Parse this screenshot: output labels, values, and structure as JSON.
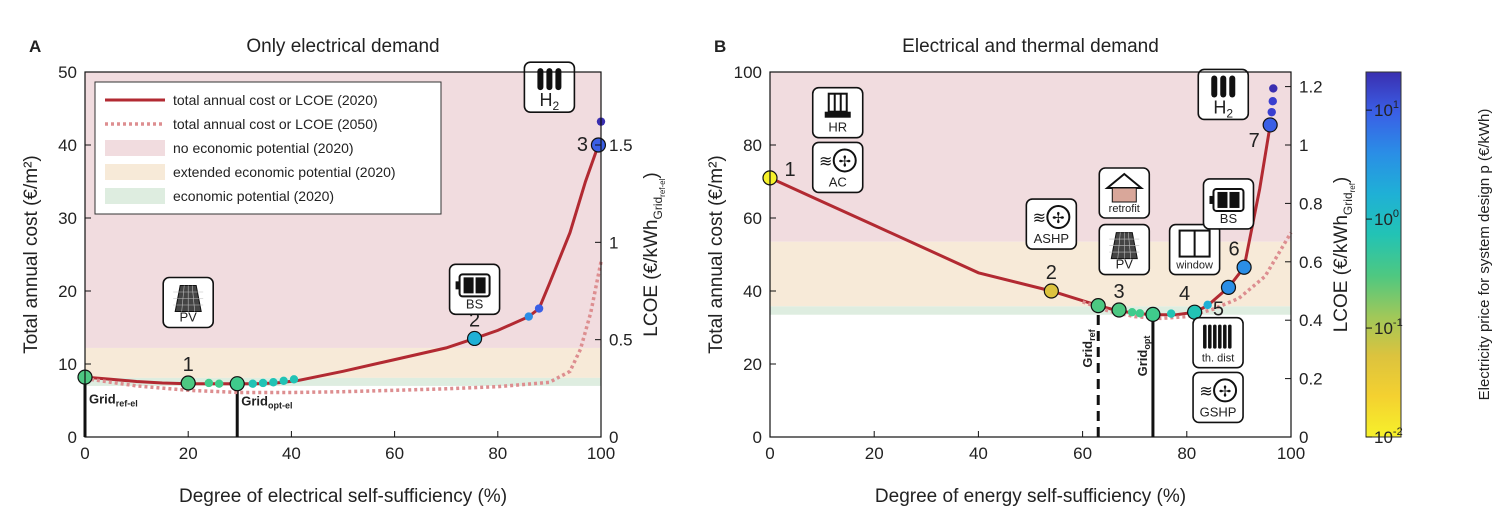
{
  "figure": {
    "colorbar": {
      "label": "Electricity price for system design p (€/kWh)",
      "ticks": [
        {
          "exp": -2,
          "text": "10"
        },
        {
          "exp": -1,
          "text": "10"
        },
        {
          "exp": 0,
          "text": "10"
        },
        {
          "exp": 1,
          "text": "10"
        }
      ],
      "tick_exponents": [
        "-2",
        "-1",
        "0",
        "1"
      ],
      "colormap": [
        "#f6f12a",
        "#f4d130",
        "#dcc33e",
        "#9ec85a",
        "#4dc882",
        "#22c3b5",
        "#1fb0d6",
        "#2a8ee6",
        "#3a5fe6",
        "#3a2fb0"
      ]
    }
  },
  "chart_data": [
    {
      "panel_letter": "A",
      "type": "line",
      "title": "Only electrical demand",
      "xlabel": "Degree of electrical self-sufficiency (%)",
      "ylabel": "Total annual cost (€/m²)",
      "ylabel2": "LCOE (€/kWh",
      "ylabel2_sub": "Grid",
      "ylabel2_subsub": "ref-el",
      "ylabel2_close": ")",
      "xlim": [
        0,
        100
      ],
      "ylim": [
        0,
        50
      ],
      "xticks": [
        0,
        20,
        40,
        60,
        80,
        100
      ],
      "yticks": [
        0,
        10,
        20,
        30,
        40,
        50
      ],
      "y2ticks": [
        "0",
        "0.5",
        "1",
        "1.5"
      ],
      "y2_per_unit": 0.0375,
      "bands": [
        {
          "name": "no economic potential (2020)",
          "y0": 12.2,
          "y1": 50,
          "color": "#f1dcdf"
        },
        {
          "name": "extended economic potential (2020)",
          "y0": 8.1,
          "y1": 12.2,
          "color": "#f7ead8"
        },
        {
          "name": "economic potential (2020)",
          "y0": 7.0,
          "y1": 8.1,
          "color": "#deede0"
        }
      ],
      "legend": {
        "placement": "top-left",
        "entries": [
          {
            "label": "total annual cost or LCOE (2020)",
            "style": "solid",
            "color": "#b22a32"
          },
          {
            "label": "total annual cost or LCOE (2050)",
            "style": "dotted",
            "color": "#dd8e90"
          },
          {
            "label": "no economic potential (2020)",
            "style": "patch",
            "color": "#f1dcdf"
          },
          {
            "label": "extended economic potential (2020)",
            "style": "patch",
            "color": "#f7ead8"
          },
          {
            "label": "economic potential (2020)",
            "style": "patch",
            "color": "#deede0"
          }
        ]
      },
      "series": [
        {
          "name": "total annual cost or LCOE (2020)",
          "style": "solid",
          "x": [
            0,
            5,
            10,
            15,
            20,
            25,
            29,
            33,
            37,
            41,
            50,
            60,
            70,
            75.5,
            80,
            86,
            88,
            90,
            94,
            97,
            99.5
          ],
          "y": [
            8.2,
            7.9,
            7.6,
            7.4,
            7.3,
            7.3,
            7.3,
            7.3,
            7.4,
            7.7,
            9.0,
            10.6,
            12.2,
            13.5,
            14.6,
            16.5,
            17.6,
            21,
            28,
            35,
            40
          ]
        },
        {
          "name": "total annual cost or LCOE (2050)",
          "style": "dotted",
          "x": [
            0,
            10,
            20,
            30,
            40,
            50,
            60,
            70,
            80,
            90,
            94,
            96,
            98,
            100
          ],
          "y": [
            8.0,
            7.0,
            6.4,
            6.1,
            6.1,
            6.2,
            6.4,
            6.6,
            6.9,
            7.5,
            9,
            12,
            17,
            24
          ]
        }
      ],
      "points": [
        {
          "x": 0,
          "y": 8.2,
          "color": "#4dc882",
          "big": true,
          "label": ""
        },
        {
          "x": 20,
          "y": 7.4,
          "color": "#4dc882",
          "big": true,
          "label": "1"
        },
        {
          "x": 24,
          "y": 7.4,
          "color": "#3fcb8c",
          "big": false,
          "label": ""
        },
        {
          "x": 26,
          "y": 7.3,
          "color": "#3fcb8c",
          "big": false,
          "label": ""
        },
        {
          "x": 29.5,
          "y": 7.3,
          "color": "#3fcb8c",
          "big": true,
          "label": ""
        },
        {
          "x": 32.5,
          "y": 7.3,
          "color": "#22c3b5",
          "big": false,
          "label": ""
        },
        {
          "x": 34.5,
          "y": 7.4,
          "color": "#22c3b5",
          "big": false,
          "label": ""
        },
        {
          "x": 36.5,
          "y": 7.5,
          "color": "#22c3b5",
          "big": false,
          "label": ""
        },
        {
          "x": 38.5,
          "y": 7.7,
          "color": "#22c3b5",
          "big": false,
          "label": ""
        },
        {
          "x": 40.5,
          "y": 7.9,
          "color": "#22c3b5",
          "big": false,
          "label": ""
        },
        {
          "x": 75.5,
          "y": 13.5,
          "color": "#1fb0d6",
          "big": true,
          "label": "2"
        },
        {
          "x": 86,
          "y": 16.5,
          "color": "#2a8ee6",
          "big": false,
          "label": ""
        },
        {
          "x": 88,
          "y": 17.6,
          "color": "#3a5fe6",
          "big": false,
          "label": ""
        },
        {
          "x": 99.5,
          "y": 40,
          "color": "#3a5fe6",
          "big": true,
          "label": "3"
        },
        {
          "x": 100,
          "y": 43.2,
          "color": "#3a2fb0",
          "big": false,
          "label": ""
        }
      ],
      "icons": [
        {
          "x": 20,
          "y": 15,
          "kind": "pv",
          "text": "PV",
          "anchor": "bottom"
        },
        {
          "x": 75.5,
          "y": 16.8,
          "kind": "battery",
          "text": "BS",
          "anchor": "bottom"
        },
        {
          "x": 90,
          "y": 44.5,
          "kind": "h2",
          "text": "H",
          "sub": "2",
          "anchor": "bottom"
        }
      ],
      "grid_markers": [
        {
          "x": 0,
          "y": 0,
          "y1": 7.6,
          "style": "solid",
          "label": "Grid",
          "sub": "ref-el",
          "orient": "h"
        },
        {
          "x": 29.5,
          "y": 0,
          "y1": 7.3,
          "style": "solid",
          "label": "Grid",
          "sub": "opt-el",
          "orient": "h"
        }
      ]
    },
    {
      "panel_letter": "B",
      "type": "line",
      "title": "Electrical and thermal demand",
      "xlabel": "Degree of energy self-sufficiency (%)",
      "ylabel": "Total annual cost (€/m²)",
      "ylabel2": "LCOE (€/kWh",
      "ylabel2_sub": "Grid",
      "ylabel2_subsub": "ref",
      "ylabel2_close": ")",
      "xlim": [
        0,
        100
      ],
      "ylim": [
        0,
        100
      ],
      "xticks": [
        0,
        20,
        40,
        60,
        80,
        100
      ],
      "yticks": [
        0,
        20,
        40,
        60,
        80,
        100
      ],
      "y2ticks": [
        "0",
        "0.2",
        "0.4",
        "0.6",
        "0.8",
        "1",
        "1.2"
      ],
      "y2_per_unit": 0.0125,
      "bands": [
        {
          "name": "no economic potential (2020)",
          "y0": 53.5,
          "y1": 100,
          "color": "#f1dcdf"
        },
        {
          "name": "extended economic potential (2020)",
          "y0": 35.8,
          "y1": 53.5,
          "color": "#f7ead8"
        },
        {
          "name": "economic potential (2020)",
          "y0": 33.5,
          "y1": 35.8,
          "color": "#deede0"
        }
      ],
      "legend": null,
      "series": [
        {
          "name": "total annual cost or LCOE (2020)",
          "style": "solid",
          "x": [
            0,
            10,
            20,
            30,
            40,
            54,
            63,
            67,
            73,
            78,
            81.5,
            84,
            88,
            91,
            94,
            96
          ],
          "y": [
            71,
            64.5,
            58,
            51.5,
            45,
            40,
            36,
            34.5,
            33.5,
            33.5,
            34.2,
            36,
            41,
            46.5,
            68,
            85.5
          ]
        },
        {
          "name": "total annual cost or LCOE (2050)",
          "style": "dotted",
          "x": [
            60,
            65,
            70,
            75,
            80,
            85,
            90,
            95,
            100
          ],
          "y": [
            37,
            34.5,
            33,
            32.5,
            33,
            35,
            38,
            44,
            56
          ]
        }
      ],
      "points": [
        {
          "x": 0,
          "y": 71,
          "color": "#f6f12a",
          "big": true,
          "label": "1"
        },
        {
          "x": 54,
          "y": 40,
          "color": "#dcc33e",
          "big": true,
          "label": "2"
        },
        {
          "x": 63,
          "y": 36,
          "color": "#4dc882",
          "big": true,
          "label": ""
        },
        {
          "x": 67,
          "y": 34.8,
          "color": "#4dc882",
          "big": true,
          "label": "3"
        },
        {
          "x": 69.5,
          "y": 34.2,
          "color": "#3fcb8c",
          "big": false,
          "label": ""
        },
        {
          "x": 71,
          "y": 33.9,
          "color": "#3fcb8c",
          "big": false,
          "label": ""
        },
        {
          "x": 73.5,
          "y": 33.6,
          "color": "#3fcb8c",
          "big": true,
          "label": ""
        },
        {
          "x": 77,
          "y": 33.8,
          "color": "#22c3b5",
          "big": false,
          "label": ""
        },
        {
          "x": 81.5,
          "y": 34.2,
          "color": "#22c3b5",
          "big": true,
          "label": "4"
        },
        {
          "x": 84,
          "y": 36.2,
          "color": "#1fb0d6",
          "big": false,
          "label": ""
        },
        {
          "x": 88,
          "y": 41,
          "color": "#2a8ee6",
          "big": true,
          "label": "5"
        },
        {
          "x": 91,
          "y": 46.5,
          "color": "#2a8ee6",
          "big": true,
          "label": "6"
        },
        {
          "x": 96,
          "y": 85.5,
          "color": "#3a5fe6",
          "big": true,
          "label": "7"
        },
        {
          "x": 96.3,
          "y": 89,
          "color": "#3a3fd0",
          "big": false,
          "label": ""
        },
        {
          "x": 96.5,
          "y": 92,
          "color": "#3a3fd0",
          "big": false,
          "label": ""
        },
        {
          "x": 96.6,
          "y": 95.5,
          "color": "#3a2fb0",
          "big": false,
          "label": ""
        }
      ],
      "icons": [
        {
          "x": 13,
          "y": 82,
          "kind": "heater",
          "text": "HR",
          "anchor": "bottom"
        },
        {
          "x": 13,
          "y": 67,
          "kind": "fan",
          "text": "AC",
          "anchor": "bottom"
        },
        {
          "x": 54,
          "y": 51.5,
          "kind": "fan",
          "text": "ASHP",
          "anchor": "bottom"
        },
        {
          "x": 68,
          "y": 60,
          "kind": "house",
          "text": "retrofit",
          "anchor": "bottom"
        },
        {
          "x": 68,
          "y": 44.5,
          "kind": "pv",
          "text": "PV",
          "anchor": "bottom"
        },
        {
          "x": 81.5,
          "y": 44.5,
          "kind": "window",
          "text": "window",
          "anchor": "bottom"
        },
        {
          "x": 88,
          "y": 57,
          "kind": "battery",
          "text": "BS",
          "anchor": "bottom"
        },
        {
          "x": 86,
          "y": 19,
          "kind": "radiator",
          "text": "th. dist",
          "anchor": "bottom"
        },
        {
          "x": 86,
          "y": 4,
          "kind": "fan",
          "text": "GSHP",
          "anchor": "bottom"
        },
        {
          "x": 87,
          "y": 87,
          "kind": "h2",
          "text": "H",
          "sub": "2",
          "anchor": "bottom"
        }
      ],
      "grid_markers": [
        {
          "x": 63,
          "y": 0,
          "y1": 36,
          "style": "dashed",
          "label": "Grid",
          "sub": "ref",
          "orient": "v"
        },
        {
          "x": 73.5,
          "y": 0,
          "y1": 33.6,
          "style": "solid",
          "label": "Grid",
          "sub": "opt",
          "orient": "v"
        }
      ]
    }
  ]
}
